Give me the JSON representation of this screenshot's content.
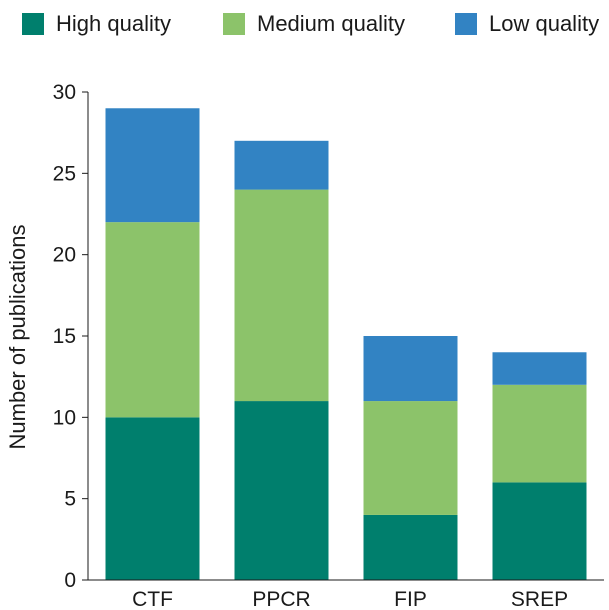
{
  "chart_data": {
    "type": "bar",
    "stacked": true,
    "categories": [
      "CTF",
      "PPCR",
      "FIP",
      "SREP"
    ],
    "series": [
      {
        "name": "High quality",
        "color": "#007F6D",
        "values": [
          10,
          11,
          4,
          6
        ]
      },
      {
        "name": "Medium quality",
        "color": "#8CC36A",
        "values": [
          12,
          13,
          7,
          6
        ]
      },
      {
        "name": "Low quality",
        "color": "#3283C3",
        "values": [
          7,
          3,
          4,
          2
        ]
      }
    ],
    "title": "",
    "xlabel": "",
    "ylabel": "Number of publications",
    "ylim": [
      0,
      30
    ],
    "yticks": [
      "0",
      "5",
      "10",
      "15",
      "20",
      "25",
      "30"
    ],
    "grid": false,
    "legend_position": "top"
  }
}
